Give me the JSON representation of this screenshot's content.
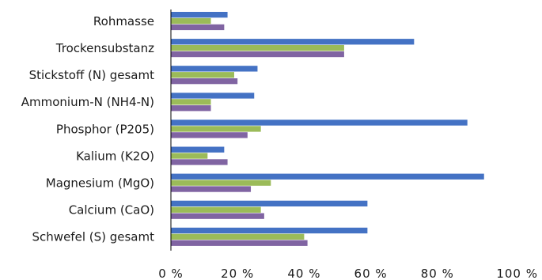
{
  "chart_data": {
    "type": "bar",
    "orientation": "horizontal",
    "title": "",
    "xlabel": "",
    "ylabel": "",
    "xlim": [
      0,
      100
    ],
    "x_ticks": [
      "0 %",
      "20 %",
      "40 %",
      "60 %",
      "80 %",
      "100 %"
    ],
    "grid": "none",
    "legend": "none",
    "categories": [
      "Rohmasse",
      "Trockensubstanz",
      "Stickstoff (N) gesamt",
      "Ammonium-N (NH4-N)",
      "Phosphor (P205)",
      "Kalium (K2O)",
      "Magnesium (MgO)",
      "Calcium (CaO)",
      "Schwefel (S) gesamt"
    ],
    "series": [
      {
        "values": [
          17,
          73,
          26,
          25,
          89,
          16,
          94,
          59,
          59
        ],
        "color": "#4472c4"
      },
      {
        "values": [
          12,
          52,
          19,
          12,
          27,
          11,
          30,
          27,
          40
        ],
        "color": "#9bbb59"
      },
      {
        "values": [
          16,
          52,
          20,
          12,
          23,
          17,
          24,
          28,
          41
        ],
        "color": "#8064a2"
      }
    ]
  }
}
